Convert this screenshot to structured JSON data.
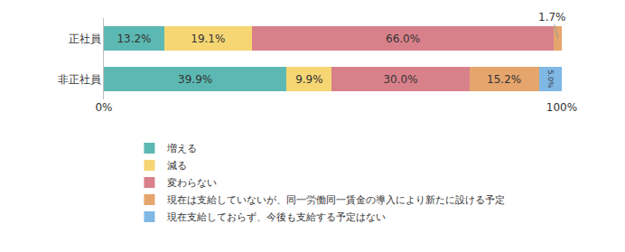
{
  "chart_data": {
    "type": "bar",
    "orientation": "horizontal",
    "stacked": true,
    "data_labels": true,
    "categories": [
      "正社員",
      "非正社員"
    ],
    "series": [
      {
        "name": "増える",
        "color": "#5cb8b2",
        "values": [
          13.2,
          39.9
        ],
        "value_labels": [
          "13.2%",
          "39.9%"
        ]
      },
      {
        "name": "減る",
        "color": "#f6d673",
        "values": [
          19.1,
          9.9
        ],
        "value_labels": [
          "19.1%",
          "9.9%"
        ]
      },
      {
        "name": "変わらない",
        "color": "#d9818b",
        "values": [
          66.0,
          30.0
        ],
        "value_labels": [
          "66.0%",
          "30.0%"
        ]
      },
      {
        "name": "現在は支給していないが、同一労働同一賃金の導入により新たに設ける予定",
        "color": "#e5a56c",
        "values": [
          1.7,
          15.2
        ],
        "value_labels": [
          "1.7%",
          "15.2%"
        ]
      },
      {
        "name": "現在支給しておらず、今後も支給する予定はない",
        "color": "#7fb8e5",
        "values": [
          0,
          5.0
        ],
        "value_labels": [
          null,
          "5.0%"
        ]
      }
    ],
    "xlim": [
      0,
      100
    ],
    "xticks": [
      {
        "value": 0,
        "label": "0%"
      },
      {
        "value": 100,
        "label": "100%"
      }
    ],
    "grid": false,
    "legend": "bottom"
  }
}
